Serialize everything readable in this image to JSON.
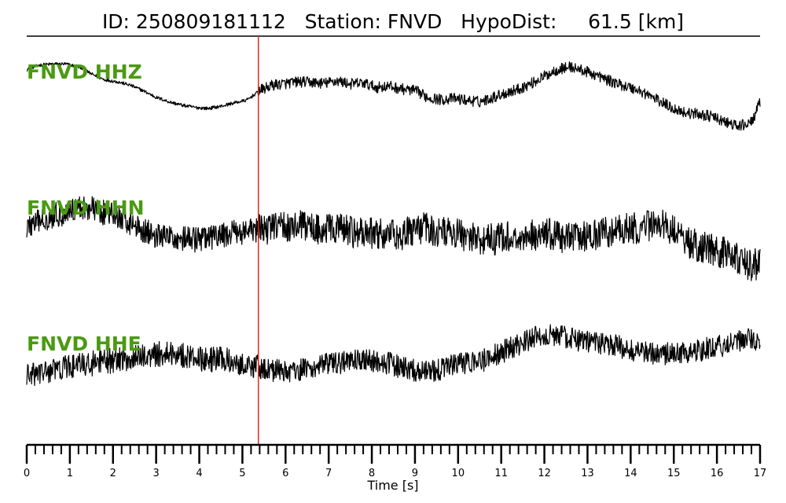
{
  "header": {
    "title": "ID: 250809181112   Station: FNVD   HypoDist:     61.5 [km]"
  },
  "colors": {
    "trace": "#000000",
    "label": "#4a9a12",
    "pick": "#e8261c",
    "axis": "#000000"
  },
  "chart_data": {
    "type": "line",
    "title": "ID: 250809181112   Station: FNVD   HypoDist:     61.5 [km]",
    "xlabel": "Time [s]",
    "ylabel": "",
    "xlim": [
      0,
      17
    ],
    "x_ticks": [
      0,
      1,
      2,
      3,
      4,
      5,
      6,
      7,
      8,
      9,
      10,
      11,
      12,
      13,
      14,
      15,
      16,
      17
    ],
    "x_tick_labels": [
      "0",
      "1",
      "2",
      "3",
      "4",
      "5",
      "6",
      "7",
      "8",
      "9",
      "10",
      "11",
      "12",
      "13",
      "14",
      "15",
      "16",
      "17"
    ],
    "minor_tick_step": 0.2,
    "grid": false,
    "pick_time": 5.37,
    "series": [
      {
        "name": "FNVD HHZ",
        "x": [
          0,
          0.3,
          0.6,
          0.9,
          1.2,
          1.5,
          1.8,
          2.1,
          2.4,
          2.7,
          3.0,
          3.3,
          3.6,
          3.9,
          4.2,
          4.5,
          4.8,
          5.1,
          5.4,
          5.7,
          6.0,
          6.3,
          6.6,
          6.9,
          7.2,
          7.5,
          7.8,
          8.1,
          8.4,
          8.7,
          9.0,
          9.3,
          9.6,
          9.9,
          10.2,
          10.5,
          10.8,
          11.1,
          11.4,
          11.7,
          12.0,
          12.3,
          12.6,
          12.9,
          13.2,
          13.5,
          13.8,
          14.1,
          14.4,
          14.7,
          15.0,
          15.3,
          15.6,
          15.9,
          16.2,
          16.5,
          16.8,
          17.0
        ],
        "values": [
          0.5,
          0.58,
          0.6,
          0.6,
          0.55,
          0.42,
          0.32,
          0.28,
          0.22,
          0.12,
          0.0,
          -0.08,
          -0.14,
          -0.18,
          -0.2,
          -0.16,
          -0.1,
          -0.05,
          0.12,
          0.22,
          0.25,
          0.28,
          0.27,
          0.25,
          0.3,
          0.24,
          0.26,
          0.18,
          0.2,
          0.15,
          0.12,
          0.0,
          -0.04,
          -0.02,
          -0.05,
          -0.08,
          0.0,
          0.08,
          0.15,
          0.25,
          0.38,
          0.5,
          0.55,
          0.48,
          0.4,
          0.3,
          0.22,
          0.15,
          0.05,
          -0.08,
          -0.2,
          -0.28,
          -0.3,
          -0.35,
          -0.45,
          -0.52,
          -0.45,
          -0.1
        ],
        "noise": 0.1,
        "noise_pre_pick": 0.03,
        "ylim": [
          -1.3,
          1.1
        ]
      },
      {
        "name": "FNVD HHN",
        "x": [
          0,
          0.3,
          0.6,
          0.9,
          1.2,
          1.5,
          1.8,
          2.1,
          2.4,
          2.7,
          3.0,
          3.3,
          3.6,
          3.9,
          4.2,
          4.5,
          4.8,
          5.1,
          5.4,
          5.7,
          6.0,
          6.3,
          6.6,
          6.9,
          7.2,
          7.5,
          7.8,
          8.1,
          8.4,
          8.7,
          9.0,
          9.3,
          9.6,
          9.9,
          10.2,
          10.5,
          10.8,
          11.1,
          11.4,
          11.7,
          12.0,
          12.3,
          12.6,
          12.9,
          13.2,
          13.5,
          13.8,
          14.1,
          14.4,
          14.7,
          15.0,
          15.3,
          15.6,
          15.9,
          16.2,
          16.5,
          16.8,
          17.0
        ],
        "values": [
          0.1,
          0.2,
          0.3,
          0.35,
          0.45,
          0.42,
          0.35,
          0.28,
          0.18,
          0.05,
          -0.05,
          -0.08,
          -0.1,
          -0.12,
          -0.1,
          -0.05,
          0.0,
          0.02,
          0.05,
          0.1,
          0.12,
          0.12,
          0.1,
          0.05,
          0.08,
          0.02,
          -0.02,
          0.0,
          -0.05,
          -0.02,
          0.05,
          0.08,
          0.02,
          0.0,
          -0.05,
          -0.1,
          -0.12,
          -0.08,
          -0.1,
          -0.05,
          0.0,
          -0.05,
          -0.1,
          -0.08,
          -0.05,
          0.02,
          0.05,
          0.08,
          0.12,
          0.15,
          0.05,
          -0.15,
          -0.25,
          -0.3,
          -0.35,
          -0.45,
          -0.6,
          -0.5
        ],
        "noise": 0.28,
        "noise_pre_pick": 0.22,
        "ylim": [
          -1.3,
          1.1
        ]
      },
      {
        "name": "FNVD HHE",
        "x": [
          0,
          0.3,
          0.6,
          0.9,
          1.2,
          1.5,
          1.8,
          2.1,
          2.4,
          2.7,
          3.0,
          3.3,
          3.6,
          3.9,
          4.2,
          4.5,
          4.8,
          5.1,
          5.4,
          5.7,
          6.0,
          6.3,
          6.6,
          6.9,
          7.2,
          7.5,
          7.8,
          8.1,
          8.4,
          8.7,
          9.0,
          9.3,
          9.6,
          9.9,
          10.2,
          10.5,
          10.8,
          11.1,
          11.4,
          11.7,
          12.0,
          12.3,
          12.6,
          12.9,
          13.2,
          13.5,
          13.8,
          14.1,
          14.4,
          14.7,
          15.0,
          15.3,
          15.6,
          15.9,
          16.2,
          16.5,
          16.8,
          17.0
        ],
        "values": [
          -0.1,
          -0.05,
          0.0,
          0.05,
          0.08,
          0.12,
          0.15,
          0.18,
          0.2,
          0.25,
          0.28,
          0.3,
          0.27,
          0.22,
          0.18,
          0.2,
          0.15,
          0.1,
          0.05,
          0.0,
          -0.02,
          0.0,
          0.05,
          0.1,
          0.12,
          0.15,
          0.18,
          0.15,
          0.12,
          0.05,
          0.0,
          -0.02,
          0.02,
          0.1,
          0.12,
          0.15,
          0.25,
          0.35,
          0.45,
          0.55,
          0.62,
          0.6,
          0.55,
          0.5,
          0.48,
          0.45,
          0.4,
          0.35,
          0.3,
          0.28,
          0.3,
          0.32,
          0.35,
          0.4,
          0.45,
          0.5,
          0.55,
          0.4
        ],
        "noise": 0.2,
        "noise_pre_pick": 0.22,
        "ylim": [
          -1.3,
          1.1
        ]
      }
    ]
  }
}
